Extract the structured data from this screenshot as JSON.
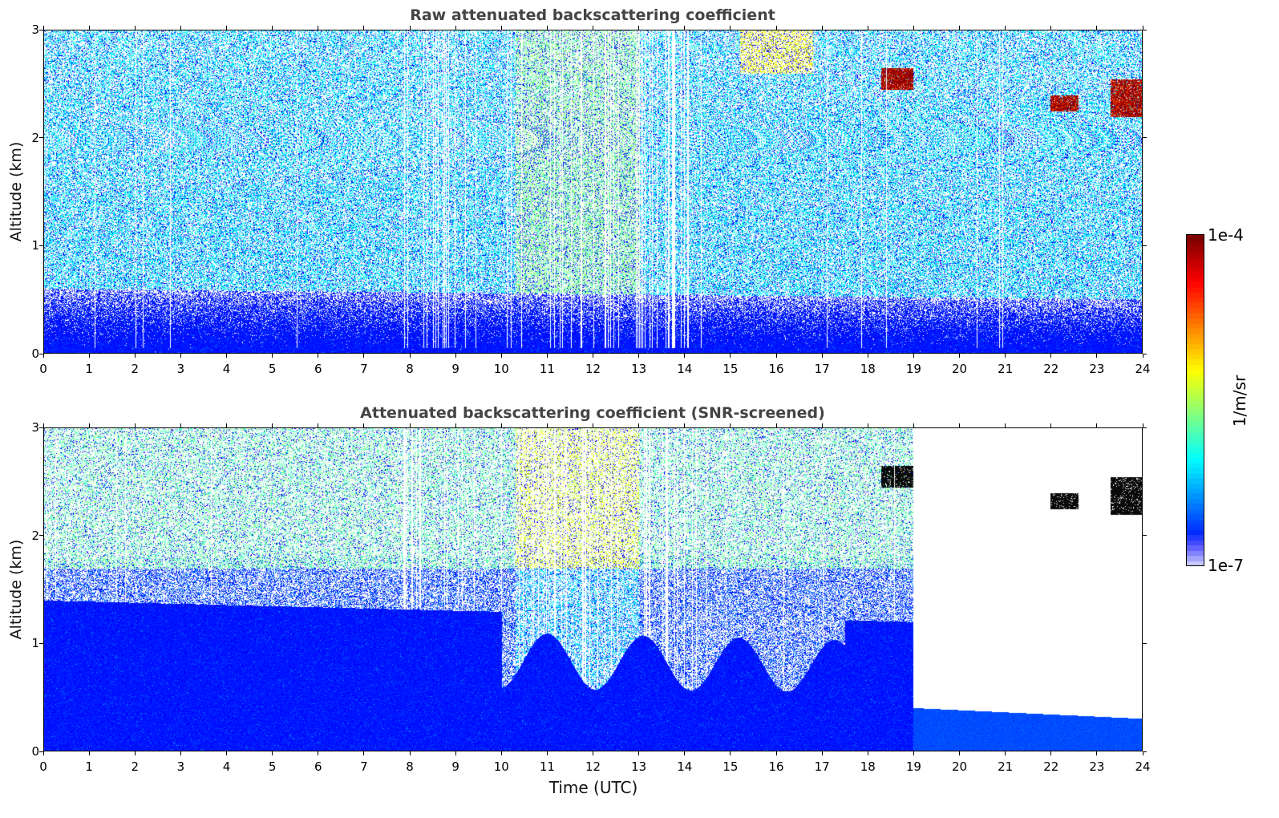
{
  "chart_data": [
    {
      "type": "heatmap",
      "title": "Raw attenuated backscattering coefficient",
      "xlabel": "",
      "ylabel": "Altitude (km)",
      "xlim": [
        0,
        24
      ],
      "ylim": [
        0,
        3
      ],
      "x_ticks": [
        "0",
        "1",
        "2",
        "3",
        "4",
        "5",
        "6",
        "7",
        "8",
        "9",
        "10",
        "11",
        "12",
        "13",
        "14",
        "15",
        "16",
        "17",
        "18",
        "19",
        "20",
        "21",
        "22",
        "23",
        "24"
      ],
      "y_ticks": [
        "0",
        "1",
        "2",
        "3"
      ],
      "features": [
        {
          "kind": "boundary_layer",
          "time": [
            0,
            24
          ],
          "altitude_top_km": [
            0.6,
            0.5
          ]
        },
        {
          "kind": "cloud",
          "time": [
            18.3,
            19.0
          ],
          "altitude_km": [
            2.45,
            2.65
          ]
        },
        {
          "kind": "cloud",
          "time": [
            22.0,
            22.6
          ],
          "altitude_km": [
            2.25,
            2.4
          ]
        },
        {
          "kind": "cloud",
          "time": [
            23.3,
            24.0
          ],
          "altitude_km": [
            2.2,
            2.55
          ]
        },
        {
          "kind": "enhanced_upper",
          "time": [
            15.2,
            16.8
          ],
          "altitude_km": [
            2.6,
            3.0
          ]
        }
      ]
    },
    {
      "type": "heatmap",
      "title": "Attenuated backscattering coefficient (SNR-screened)",
      "xlabel": "Time (UTC)",
      "ylabel": "Altitude (km)",
      "xlim": [
        0,
        24
      ],
      "ylim": [
        0,
        3
      ],
      "x_ticks": [
        "0",
        "1",
        "2",
        "3",
        "4",
        "5",
        "6",
        "7",
        "8",
        "9",
        "10",
        "11",
        "12",
        "13",
        "14",
        "15",
        "16",
        "17",
        "18",
        "19",
        "20",
        "21",
        "22",
        "23",
        "24"
      ],
      "y_ticks": [
        "0",
        "1",
        "2",
        "3"
      ],
      "features": [
        {
          "kind": "boundary_layer",
          "time": [
            0,
            19
          ],
          "altitude_top_km": [
            1.4,
            1.2
          ]
        },
        {
          "kind": "low_layer",
          "time": [
            19,
            24
          ],
          "altitude_top_km": [
            0.4,
            0.3
          ]
        },
        {
          "kind": "cloud",
          "time": [
            18.3,
            19.0
          ],
          "altitude_km": [
            2.45,
            2.65
          ]
        },
        {
          "kind": "cloud",
          "time": [
            22.0,
            22.6
          ],
          "altitude_km": [
            2.25,
            2.4
          ]
        },
        {
          "kind": "cloud",
          "time": [
            23.3,
            24.0
          ],
          "altitude_km": [
            2.2,
            2.55
          ]
        }
      ]
    }
  ],
  "colorbar": {
    "label": "1/m/sr",
    "max_label": "1e-4",
    "min_label": "1e-7",
    "colormap": "jet"
  },
  "colors": {
    "title": "#444444",
    "background": "#ffffff"
  }
}
